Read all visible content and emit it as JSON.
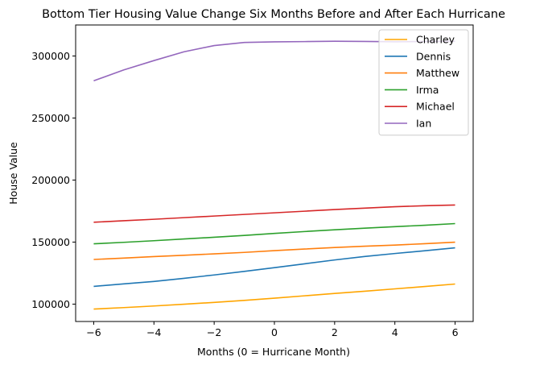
{
  "chart_data": {
    "type": "line",
    "title": "Bottom Tier Housing Value Change Six Months Before and After Each Hurricane",
    "xlabel": "Months (0 = Hurricane Month)",
    "ylabel": "House Value",
    "xlim": [
      -6.6,
      6.6
    ],
    "ylim": [
      86000,
      325000
    ],
    "xticks": [
      -6,
      -4,
      -2,
      0,
      2,
      4,
      6
    ],
    "xtick_labels": [
      "−6",
      "−4",
      "−2",
      "0",
      "2",
      "4",
      "6"
    ],
    "yticks": [
      100000,
      150000,
      200000,
      250000,
      300000
    ],
    "ytick_labels": [
      "100000",
      "150000",
      "200000",
      "250000",
      "300000"
    ],
    "grid": false,
    "legend_position": "top-right",
    "x": [
      -6,
      -5,
      -4,
      -3,
      -2,
      -1,
      0,
      1,
      2,
      3,
      4,
      5,
      6
    ],
    "series": [
      {
        "name": "Charley",
        "color": "#ffa500",
        "values": [
          96000,
          97200,
          98500,
          99900,
          101400,
          103000,
          104800,
          106700,
          108600,
          110400,
          112300,
          114200,
          116200
        ]
      },
      {
        "name": "Dennis",
        "color": "#1f77b4",
        "values": [
          114300,
          116300,
          118300,
          120800,
          123500,
          126400,
          129400,
          132500,
          135600,
          138400,
          140800,
          143000,
          145400
        ]
      },
      {
        "name": "Matthew",
        "color": "#ff7f0e",
        "values": [
          136000,
          137100,
          138300,
          139400,
          140500,
          141700,
          143100,
          144400,
          145600,
          146700,
          147600,
          148700,
          149900
        ]
      },
      {
        "name": "Irma",
        "color": "#2ca02c",
        "values": [
          148600,
          149800,
          151100,
          152500,
          153900,
          155400,
          157000,
          158500,
          159900,
          161200,
          162400,
          163600,
          164900
        ]
      },
      {
        "name": "Michael",
        "color": "#d62728",
        "values": [
          166000,
          167200,
          168400,
          169700,
          171000,
          172300,
          173600,
          174900,
          176200,
          177400,
          178500,
          179300,
          179900
        ]
      },
      {
        "name": "Ian",
        "color": "#9467bd",
        "values": [
          280000,
          288800,
          296300,
          303400,
          308400,
          310900,
          311400,
          311600,
          311900,
          311700,
          311500,
          311700,
          311800
        ]
      }
    ]
  }
}
